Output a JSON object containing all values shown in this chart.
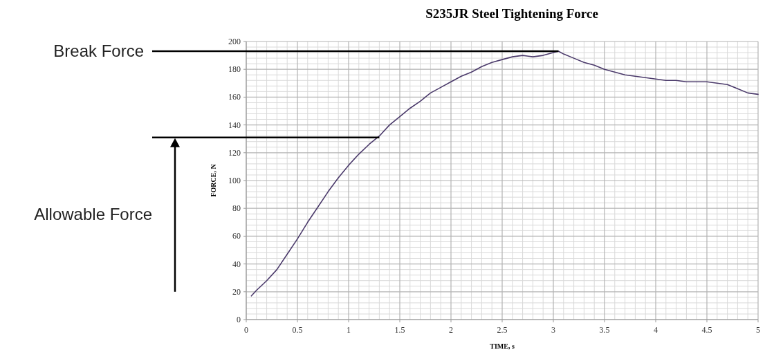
{
  "chart_data": {
    "type": "line",
    "title": "S235JR Steel Tightening Force",
    "xlabel": "TIME, s",
    "ylabel": "FORCE, N",
    "x": [
      0.05,
      0.1,
      0.2,
      0.3,
      0.4,
      0.5,
      0.6,
      0.7,
      0.8,
      0.9,
      1.0,
      1.1,
      1.2,
      1.3,
      1.4,
      1.5,
      1.6,
      1.7,
      1.8,
      1.9,
      2.0,
      2.1,
      2.2,
      2.3,
      2.4,
      2.5,
      2.6,
      2.7,
      2.8,
      2.9,
      3.0,
      3.05,
      3.1,
      3.2,
      3.3,
      3.4,
      3.5,
      3.6,
      3.7,
      3.8,
      3.9,
      4.0,
      4.1,
      4.2,
      4.3,
      4.4,
      4.5,
      4.6,
      4.7,
      4.8,
      4.9,
      5.0
    ],
    "series": [
      {
        "color": "#4b3a6b",
        "values": [
          17,
          21,
          28,
          36,
          47,
          58,
          70,
          81,
          92,
          102,
          111,
          119,
          126,
          132,
          140,
          146,
          152,
          157,
          163,
          167,
          171,
          175,
          178,
          182,
          185,
          187,
          189,
          190,
          189,
          190,
          192,
          193,
          191,
          188,
          185,
          183,
          180,
          178,
          176,
          175,
          174,
          173,
          172,
          172,
          171,
          171,
          171,
          170,
          169,
          166,
          163,
          162
        ]
      }
    ],
    "xlim": [
      0,
      5
    ],
    "ylim": [
      0,
      200
    ],
    "xticks": [
      0,
      0.5,
      1,
      1.5,
      2,
      2.5,
      3,
      3.5,
      4,
      4.5,
      5
    ],
    "yticks": [
      0,
      20,
      40,
      60,
      80,
      100,
      120,
      140,
      160,
      180,
      200
    ],
    "grid": true,
    "marker": "none",
    "line_style": "solid",
    "ref_lines": [
      {
        "axis": "y",
        "value": 193,
        "label": "Break Force",
        "color": "#000000"
      },
      {
        "axis": "y",
        "value": 131,
        "color": "#000000"
      }
    ],
    "annotations": [
      "Allowable Force"
    ]
  }
}
